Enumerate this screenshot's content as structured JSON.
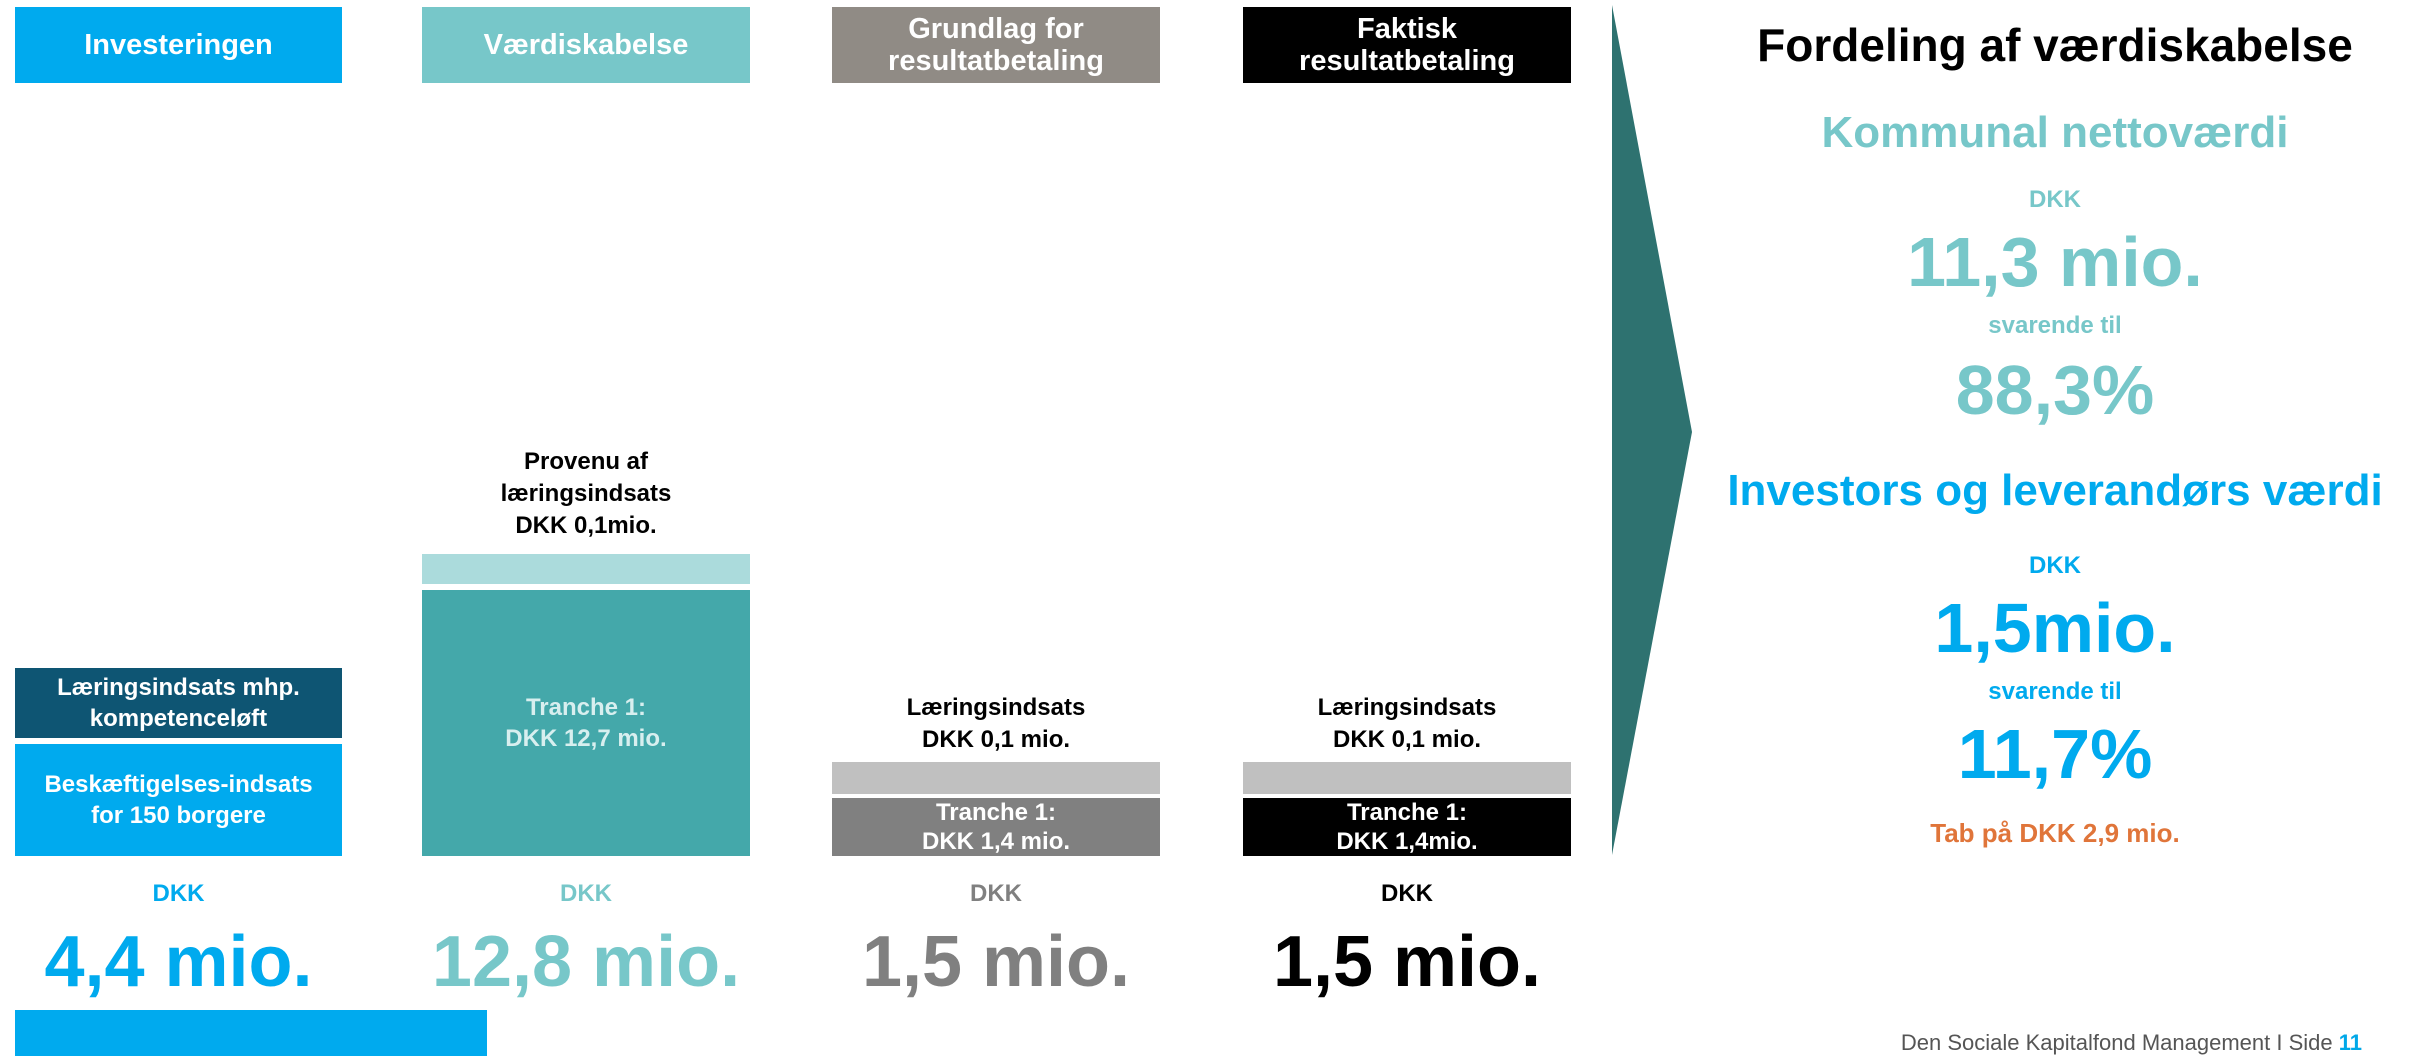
{
  "colors": {
    "blue": "#00aaee",
    "dark_blue": "#0e5573",
    "teal": "#77c7c9",
    "teal_dark": "#44a8aa",
    "teal_light": "#abdbdc",
    "gray_header": "#908b85",
    "gray_dark": "#808080",
    "gray_light": "#c0c0c0",
    "black": "#000000",
    "arrow": "#2e7270",
    "orange": "#e0753a"
  },
  "columns": [
    {
      "header": "Investeringen",
      "currency": "DKK",
      "amount": "4,4 mio.",
      "segments": [
        {
          "label": "Beskæftigelses-indsats\nfor 150 borgere",
          "value": 4.3
        },
        {
          "label": "Læringsindsats mhp.\nkompetenceløft",
          "value": 0.1
        }
      ]
    },
    {
      "header": "Værdiskabelse",
      "currency": "DKK",
      "amount": "12,8 mio.",
      "top_label": "Provenu af\nlæringsindsats\nDKK 0,1mio.",
      "segments": [
        {
          "label": "Tranche 1:\nDKK 12,7 mio.",
          "value": 12.7
        },
        {
          "label": "",
          "value": 0.1
        }
      ]
    },
    {
      "header": "Grundlag for\nresultatbetaling",
      "currency": "DKK",
      "amount": "1,5 mio.",
      "top_label": "Læringsindsats\nDKK 0,1 mio.",
      "segments": [
        {
          "label": "Tranche 1:\nDKK 1,4 mio.",
          "value": 1.4
        },
        {
          "label": "",
          "value": 0.1
        }
      ]
    },
    {
      "header": "Faktisk\nresultatbetaling",
      "currency": "DKK",
      "amount": "1,5 mio.",
      "top_label": "Læringsindsats\nDKK 0,1 mio.",
      "segments": [
        {
          "label": "Tranche 1:\nDKK 1,4mio.",
          "value": 1.4
        },
        {
          "label": "",
          "value": 0.1
        }
      ]
    }
  ],
  "right_panel": {
    "title": "Fordeling af værdiskabelse",
    "kommunal": {
      "heading": "Kommunal nettoværdi",
      "currency": "DKK",
      "amount": "11,3 mio.",
      "svarende": "svarende til",
      "percent": "88,3%"
    },
    "investor": {
      "heading": "Investors og leverandørs værdi",
      "currency": "DKK",
      "amount": "1,5mio.",
      "svarende": "svarende til",
      "percent": "11,7%"
    },
    "loss_note": "Tab på DKK 2,9 mio."
  },
  "footer": {
    "text": "Den Sociale Kapitalfond Management  I  Side",
    "page": "11"
  },
  "chart_data": {
    "type": "bar",
    "stacked": true,
    "categories": [
      "Investeringen",
      "Værdiskabelse",
      "Grundlag for resultatbetaling",
      "Faktisk resultatbetaling"
    ],
    "unit": "DKK mio.",
    "series": [
      {
        "values": [
          4.3,
          12.7,
          1.4,
          1.4
        ]
      },
      {
        "values": [
          0.1,
          0.1,
          0.1,
          0.1
        ]
      }
    ],
    "totals": [
      4.4,
      12.8,
      1.5,
      1.5
    ]
  }
}
